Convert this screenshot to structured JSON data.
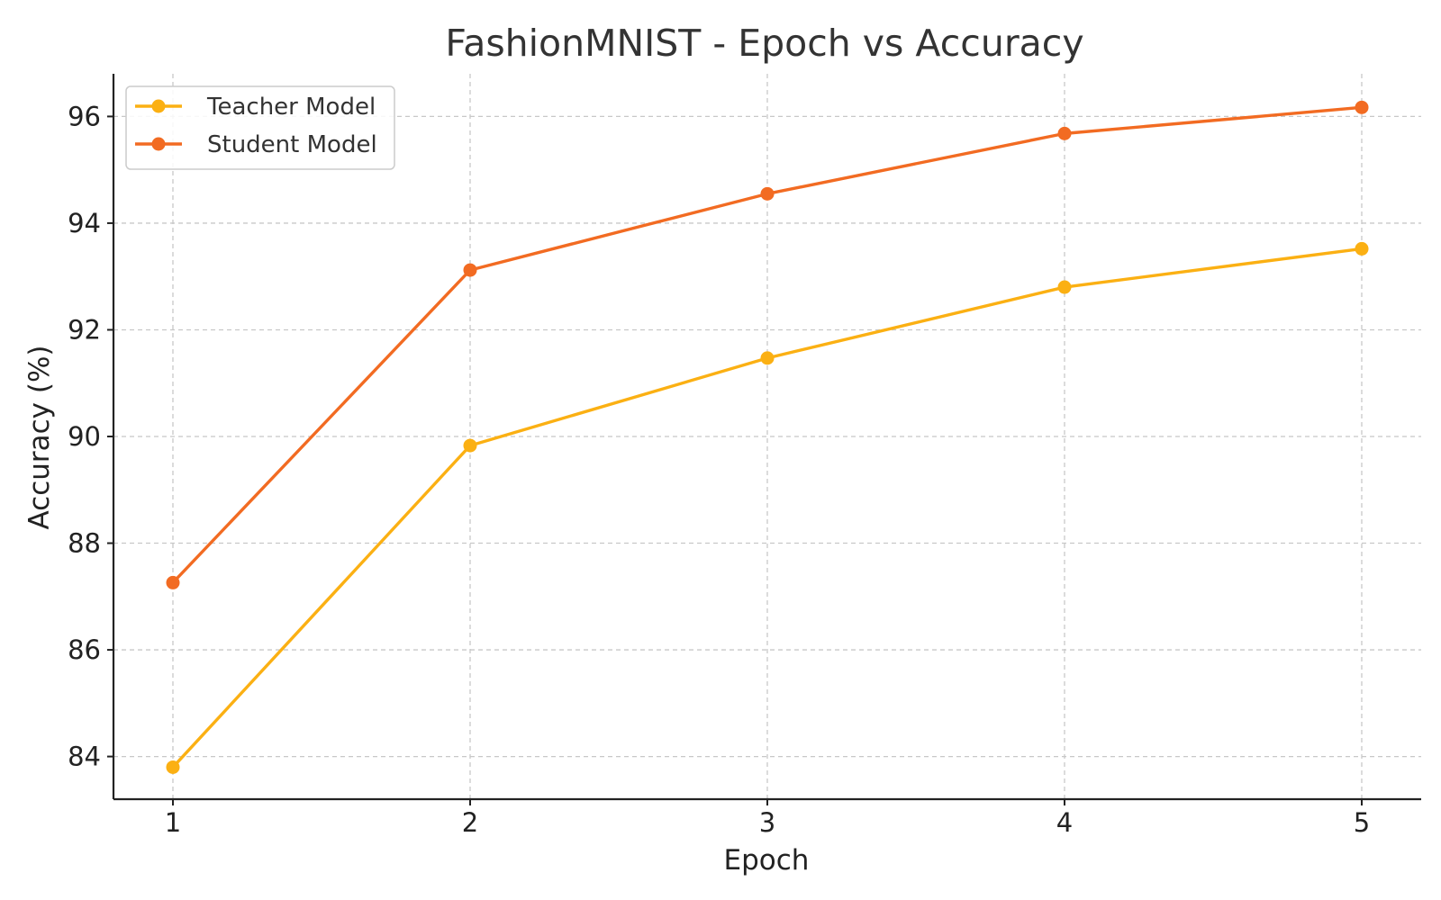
{
  "chart_data": {
    "type": "line",
    "title": "FashionMNIST - Epoch vs Accuracy",
    "xlabel": "Epoch",
    "ylabel": "Accuracy (%)",
    "x": [
      1,
      2,
      3,
      4,
      5
    ],
    "x_ticks": [
      "1",
      "2",
      "3",
      "4",
      "5"
    ],
    "y_ticks": [
      "84",
      "86",
      "88",
      "90",
      "92",
      "94",
      "96"
    ],
    "xlim": [
      0.8,
      5.2
    ],
    "ylim": [
      83.2,
      96.8
    ],
    "grid": true,
    "legend_position": "top-left",
    "series": [
      {
        "name": "Teacher Model",
        "color": "#FBB013",
        "values": [
          83.8,
          89.83,
          91.47,
          92.8,
          93.52
        ]
      },
      {
        "name": "Student Model",
        "color": "#F26B22",
        "values": [
          87.26,
          93.12,
          94.55,
          95.68,
          96.17
        ]
      }
    ]
  }
}
